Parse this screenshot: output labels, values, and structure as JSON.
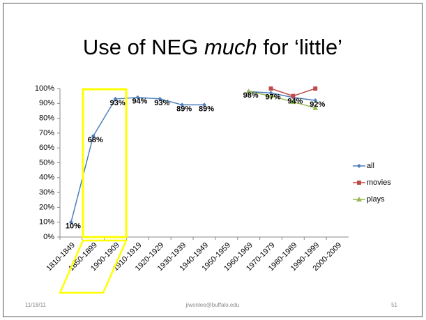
{
  "chart_data": {
    "type": "line",
    "title": {
      "before": "Use of NEG",
      "emphasis": "much",
      "after": "for ‘little’"
    },
    "categories": [
      "1810-1849",
      "1850-1899",
      "1900-1909",
      "1910-1919",
      "1920-1929",
      "1930-1939",
      "1940-1949",
      "1950-1959",
      "1960-1969",
      "1970-1979",
      "1980-1989",
      "1990-1999",
      "2000-2009"
    ],
    "series": [
      {
        "name": "all",
        "color": "#4a7ebb",
        "marker": "diamond",
        "values": [
          10,
          68,
          93,
          94,
          93,
          89,
          89,
          null,
          98,
          97,
          94,
          92,
          null
        ],
        "value_labels": [
          "10%",
          "68%",
          "93%",
          "94%",
          "93%",
          "89%",
          "89%",
          null,
          "98%",
          "97%",
          "94%",
          "92%",
          null
        ]
      },
      {
        "name": "movies",
        "color": "#be4b48",
        "marker": "square",
        "values": [
          null,
          null,
          null,
          null,
          null,
          null,
          null,
          null,
          null,
          100,
          95,
          100,
          null
        ]
      },
      {
        "name": "plays",
        "color": "#98b954",
        "marker": "triangle",
        "values": [
          null,
          null,
          null,
          null,
          null,
          null,
          null,
          null,
          98,
          95,
          91,
          87,
          null
        ]
      }
    ],
    "ylim": [
      0,
      100
    ],
    "yticks": [
      {
        "value": 0,
        "label": "0%"
      },
      {
        "value": 10,
        "label": "10%"
      },
      {
        "value": 20,
        "label": "20%"
      },
      {
        "value": 30,
        "label": "30%"
      },
      {
        "value": 40,
        "label": "40%"
      },
      {
        "value": 50,
        "label": "50%"
      },
      {
        "value": 60,
        "label": "60%"
      },
      {
        "value": 70,
        "label": "70%"
      },
      {
        "value": 80,
        "label": "80%"
      },
      {
        "value": 90,
        "label": "90%"
      },
      {
        "value": 100,
        "label": "100%"
      }
    ],
    "legend": "right"
  },
  "footer": {
    "date": "11/18/11",
    "email": "jiwonlee@buffalo.edu",
    "page": "51"
  }
}
